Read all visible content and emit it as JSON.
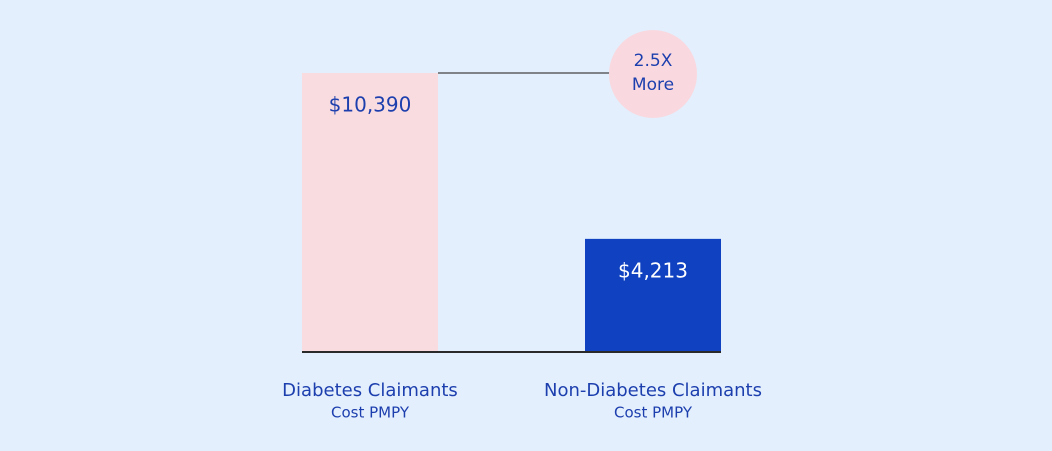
{
  "chart_data": {
    "type": "bar",
    "categories": [
      "Diabetes Claimants",
      "Non-Diabetes Claimants"
    ],
    "category_sublabels": [
      "Cost PMPY",
      "Cost PMPY"
    ],
    "values": [
      10390,
      4213
    ],
    "value_labels": [
      "$10,390",
      "$4,213"
    ],
    "colors": [
      "#f9dce0",
      "#0f41c0"
    ],
    "value_label_colors": [
      "#1d3fae",
      "#ffffff"
    ],
    "annotation": {
      "lines": [
        "2.5X",
        "More"
      ],
      "color": "#f9d9df"
    }
  }
}
